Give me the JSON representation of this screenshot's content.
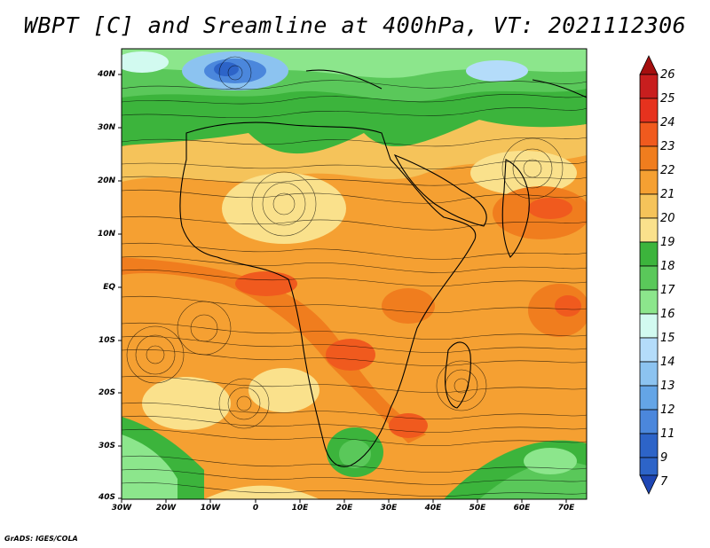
{
  "title": "WBPT [C] and Sreamline at 400hPa, VT: 2021112306",
  "credit": "GrADS: IGES/COLA",
  "map": {
    "lat_labels": [
      "40N",
      "30N",
      "20N",
      "10N",
      "EQ",
      "10S",
      "20S",
      "30S",
      "40S"
    ],
    "lon_labels": [
      "30W",
      "20W",
      "10W",
      "0",
      "10E",
      "20E",
      "30E",
      "40E",
      "50E",
      "60E",
      "70E"
    ]
  },
  "colorbar": {
    "labels": [
      "26",
      "25",
      "24",
      "23",
      "22",
      "21",
      "20",
      "19",
      "18",
      "17",
      "16",
      "15",
      "14",
      "13",
      "12",
      "11",
      "9",
      "7"
    ],
    "colors": [
      "#a50f0f",
      "#c81e1e",
      "#e6321e",
      "#f05a1e",
      "#f07d1e",
      "#f5a032",
      "#f5c35a",
      "#fae18c",
      "#3cb43c",
      "#5ac85a",
      "#8ce68c",
      "#d2faf0",
      "#b4dcfa",
      "#8cc3f0",
      "#64a5e6",
      "#4b87dc",
      "#2d64c8",
      "#1e46b4"
    ]
  }
}
